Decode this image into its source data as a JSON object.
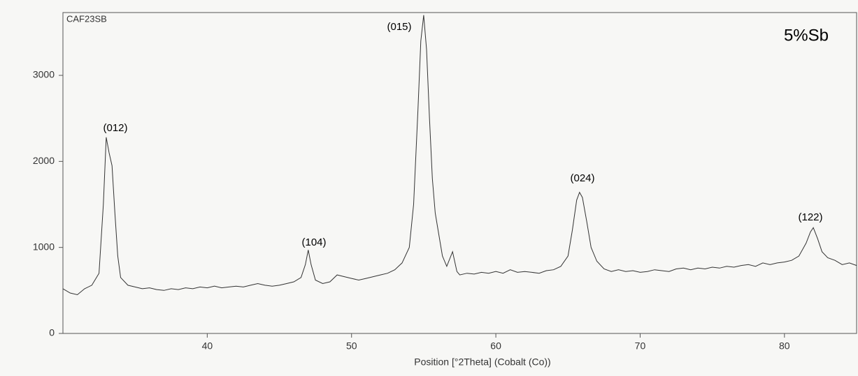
{
  "chart_data": {
    "type": "line",
    "title": "CAF23SB",
    "subtitle": "5%Sb",
    "xlabel": "Position [°2Theta] (Cobalt (Co))",
    "annotations": [
      "(012)",
      "(104)",
      "(015)",
      "(024)",
      "(122)"
    ],
    "color": "#333333",
    "x": [
      30.0,
      30.5,
      31.0,
      31.5,
      32.0,
      32.5,
      32.8,
      33.0,
      33.2,
      33.4,
      33.6,
      33.8,
      34.0,
      34.5,
      35.0,
      35.5,
      36.0,
      36.5,
      37.0,
      37.5,
      38.0,
      38.5,
      39.0,
      39.5,
      40.0,
      40.5,
      41.0,
      41.5,
      42.0,
      42.5,
      43.0,
      43.5,
      44.0,
      44.5,
      45.0,
      45.5,
      46.0,
      46.5,
      46.8,
      47.0,
      47.2,
      47.5,
      48.0,
      48.5,
      49.0,
      49.5,
      50.0,
      50.5,
      51.0,
      51.5,
      52.0,
      52.5,
      53.0,
      53.5,
      54.0,
      54.3,
      54.6,
      54.8,
      55.0,
      55.2,
      55.4,
      55.6,
      55.8,
      56.0,
      56.3,
      56.6,
      57.0,
      57.3,
      57.5,
      58.0,
      58.5,
      59.0,
      59.5,
      60.0,
      60.5,
      61.0,
      61.5,
      62.0,
      62.5,
      63.0,
      63.5,
      64.0,
      64.5,
      65.0,
      65.3,
      65.6,
      65.8,
      66.0,
      66.3,
      66.6,
      67.0,
      67.5,
      68.0,
      68.5,
      69.0,
      69.5,
      70.0,
      70.5,
      71.0,
      71.5,
      72.0,
      72.5,
      73.0,
      73.5,
      74.0,
      74.5,
      75.0,
      75.5,
      76.0,
      76.5,
      77.0,
      77.5,
      78.0,
      78.5,
      79.0,
      79.5,
      80.0,
      80.5,
      81.0,
      81.5,
      81.8,
      82.0,
      82.3,
      82.6,
      83.0,
      83.5,
      84.0,
      84.5,
      85.0
    ],
    "values": [
      520,
      470,
      450,
      520,
      560,
      700,
      1500,
      2280,
      2100,
      1950,
      1400,
      900,
      650,
      560,
      540,
      520,
      530,
      510,
      500,
      520,
      510,
      530,
      520,
      540,
      530,
      550,
      530,
      540,
      550,
      540,
      560,
      580,
      560,
      550,
      560,
      580,
      600,
      650,
      800,
      970,
      800,
      620,
      580,
      600,
      680,
      660,
      640,
      620,
      640,
      660,
      680,
      700,
      740,
      820,
      1000,
      1500,
      2600,
      3400,
      3700,
      3300,
      2500,
      1800,
      1400,
      1200,
      900,
      780,
      950,
      720,
      680,
      700,
      690,
      710,
      700,
      720,
      700,
      740,
      710,
      720,
      710,
      700,
      730,
      740,
      780,
      900,
      1200,
      1550,
      1640,
      1580,
      1300,
      1000,
      840,
      750,
      720,
      740,
      720,
      730,
      710,
      720,
      740,
      730,
      720,
      750,
      760,
      740,
      760,
      750,
      770,
      760,
      780,
      770,
      790,
      800,
      780,
      820,
      800,
      820,
      830,
      850,
      900,
      1050,
      1180,
      1230,
      1100,
      950,
      880,
      850,
      800,
      820,
      790
    ],
    "xlim": [
      30,
      85
    ],
    "ylim": [
      0,
      3730
    ],
    "xticks": [
      40,
      50,
      60,
      70,
      80
    ],
    "yticks": [
      0,
      1000,
      2000,
      3000
    ]
  }
}
